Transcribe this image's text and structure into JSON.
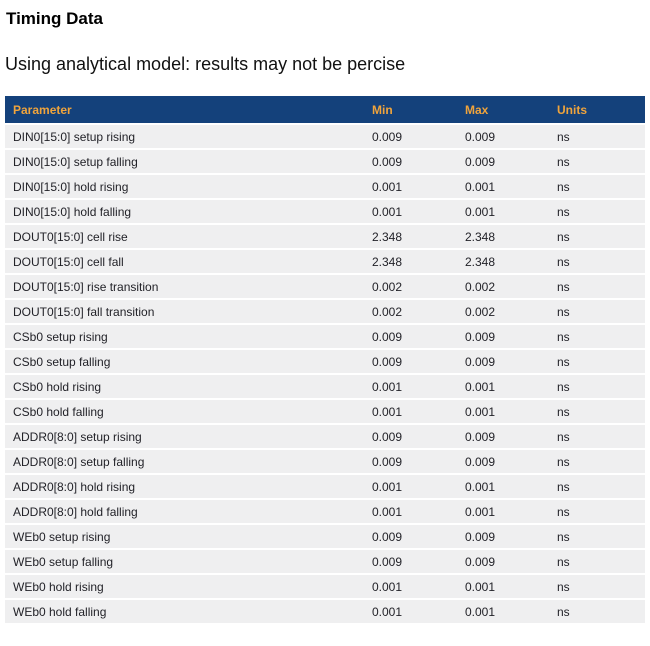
{
  "page": {
    "title": "Timing Data",
    "subtitle": "Using analytical model: results may not be percise"
  },
  "colors": {
    "header_bg": "#14417b",
    "header_text": "#f0a43c",
    "row_bg": "#efeff0",
    "row_text": "#222228"
  },
  "table": {
    "headers": [
      "Parameter",
      "Min",
      "Max",
      "Units"
    ],
    "rows": [
      [
        "DIN0[15:0] setup rising",
        "0.009",
        "0.009",
        "ns"
      ],
      [
        "DIN0[15:0] setup falling",
        "0.009",
        "0.009",
        "ns"
      ],
      [
        "DIN0[15:0] hold rising",
        "0.001",
        "0.001",
        "ns"
      ],
      [
        "DIN0[15:0] hold falling",
        "0.001",
        "0.001",
        "ns"
      ],
      [
        "DOUT0[15:0] cell rise",
        "2.348",
        "2.348",
        "ns"
      ],
      [
        "DOUT0[15:0] cell fall",
        "2.348",
        "2.348",
        "ns"
      ],
      [
        "DOUT0[15:0] rise transition",
        "0.002",
        "0.002",
        "ns"
      ],
      [
        "DOUT0[15:0] fall transition",
        "0.002",
        "0.002",
        "ns"
      ],
      [
        "CSb0 setup rising",
        "0.009",
        "0.009",
        "ns"
      ],
      [
        "CSb0 setup falling",
        "0.009",
        "0.009",
        "ns"
      ],
      [
        "CSb0 hold rising",
        "0.001",
        "0.001",
        "ns"
      ],
      [
        "CSb0 hold falling",
        "0.001",
        "0.001",
        "ns"
      ],
      [
        "ADDR0[8:0] setup rising",
        "0.009",
        "0.009",
        "ns"
      ],
      [
        "ADDR0[8:0] setup falling",
        "0.009",
        "0.009",
        "ns"
      ],
      [
        "ADDR0[8:0] hold rising",
        "0.001",
        "0.001",
        "ns"
      ],
      [
        "ADDR0[8:0] hold falling",
        "0.001",
        "0.001",
        "ns"
      ],
      [
        "WEb0 setup rising",
        "0.009",
        "0.009",
        "ns"
      ],
      [
        "WEb0 setup falling",
        "0.009",
        "0.009",
        "ns"
      ],
      [
        "WEb0 hold rising",
        "0.001",
        "0.001",
        "ns"
      ],
      [
        "WEb0 hold falling",
        "0.001",
        "0.001",
        "ns"
      ]
    ]
  }
}
